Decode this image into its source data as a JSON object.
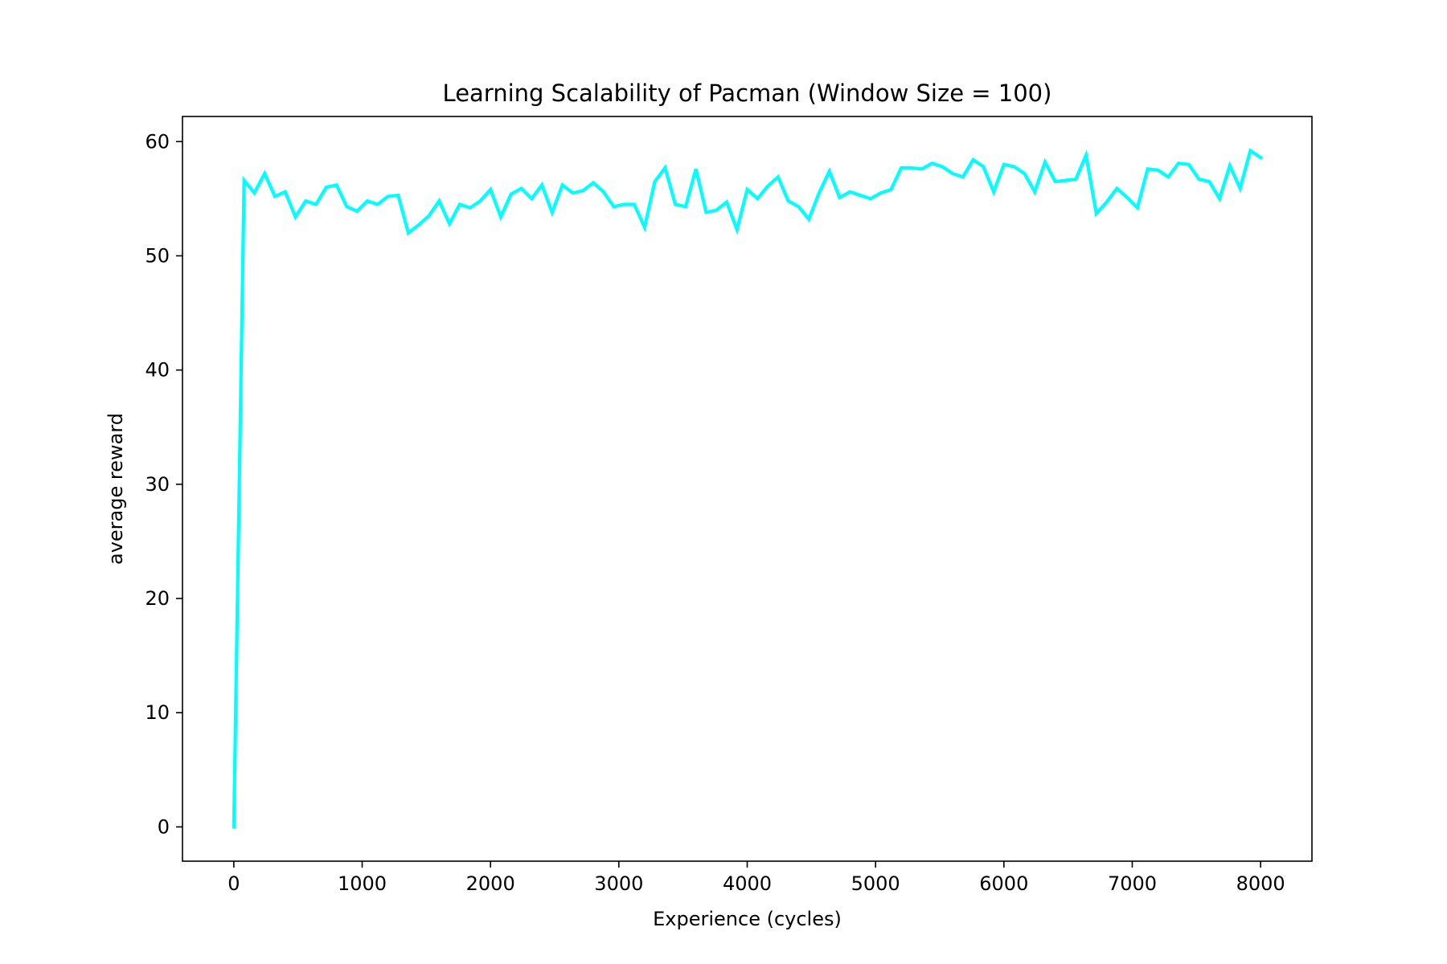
{
  "chart_data": {
    "type": "line",
    "title": "Learning Scalability of Pacman (Window Size = 100)",
    "xlabel": "Experience (cycles)",
    "ylabel": "average reward",
    "xlim": [
      -400,
      8400
    ],
    "ylim": [
      -3,
      62.2
    ],
    "xticks": [
      0,
      1000,
      2000,
      3000,
      4000,
      5000,
      6000,
      7000,
      8000
    ],
    "yticks": [
      0,
      10,
      20,
      30,
      40,
      50,
      60
    ],
    "grid": false,
    "legend": "none",
    "series": [
      {
        "color": "#00ffff",
        "x": [
          0,
          80,
          160,
          240,
          320,
          400,
          480,
          560,
          640,
          720,
          800,
          880,
          960,
          1040,
          1120,
          1200,
          1280,
          1360,
          1440,
          1520,
          1600,
          1680,
          1760,
          1840,
          1920,
          2000,
          2080,
          2160,
          2240,
          2320,
          2400,
          2480,
          2560,
          2640,
          2720,
          2800,
          2880,
          2960,
          3040,
          3120,
          3200,
          3280,
          3360,
          3440,
          3520,
          3600,
          3680,
          3760,
          3840,
          3920,
          4000,
          4080,
          4160,
          4240,
          4320,
          4400,
          4480,
          4560,
          4640,
          4720,
          4800,
          4880,
          4960,
          5040,
          5120,
          5200,
          5280,
          5360,
          5440,
          5520,
          5600,
          5680,
          5760,
          5840,
          5920,
          6000,
          6080,
          6160,
          6240,
          6320,
          6400,
          6480,
          6560,
          6640,
          6720,
          6800,
          6880,
          6960,
          7040,
          7120,
          7200,
          7280,
          7360,
          7440,
          7520,
          7600,
          7680,
          7760,
          7840,
          7920,
          8000
        ],
        "y": [
          0,
          56.6,
          55.5,
          57.2,
          55.2,
          55.6,
          53.4,
          54.8,
          54.5,
          56.0,
          56.2,
          54.3,
          53.9,
          54.8,
          54.5,
          55.2,
          55.3,
          52.0,
          52.7,
          53.5,
          54.8,
          52.8,
          54.5,
          54.2,
          54.8,
          55.8,
          53.4,
          55.4,
          55.9,
          55.0,
          56.2,
          53.8,
          56.2,
          55.5,
          55.7,
          56.4,
          55.6,
          54.3,
          54.5,
          54.5,
          52.5,
          56.5,
          57.7,
          54.5,
          54.3,
          57.6,
          53.8,
          54.0,
          54.7,
          52.3,
          55.8,
          55.0,
          56.1,
          56.9,
          54.8,
          54.3,
          53.2,
          55.5,
          57.4,
          55.1,
          55.6,
          55.3,
          55.0,
          55.5,
          55.8,
          57.7,
          57.7,
          57.6,
          58.1,
          57.8,
          57.2,
          56.9,
          58.4,
          57.8,
          55.6,
          58.0,
          57.8,
          57.2,
          55.6,
          58.2,
          56.5,
          56.6,
          56.7,
          58.8,
          53.7,
          54.7,
          55.9,
          55.1,
          54.2,
          57.6,
          57.5,
          56.9,
          58.1,
          58.0,
          56.7,
          56.5,
          55.0,
          57.9,
          55.9,
          59.2,
          58.6
        ]
      }
    ]
  }
}
